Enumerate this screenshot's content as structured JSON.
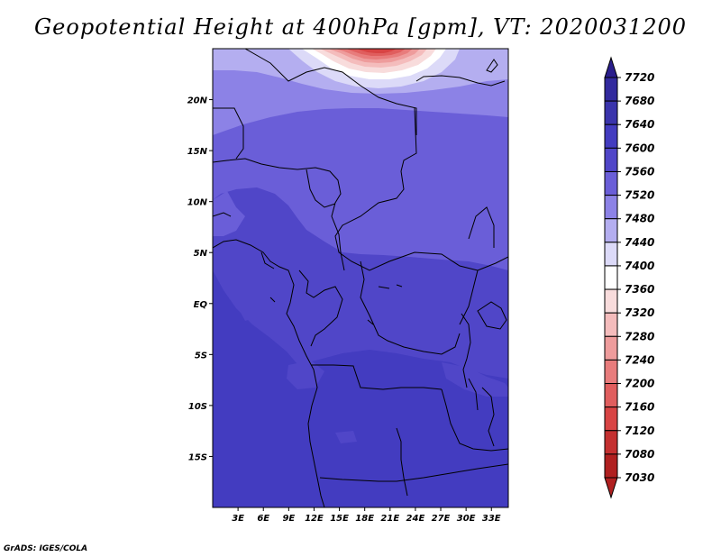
{
  "title": "Geopotential Height at 400hPa [gpm], VT: 2020031200",
  "credit": "GrADS: IGES/COLA",
  "map": {
    "lon_range": [
      0,
      35
    ],
    "lat_range": [
      -20,
      25
    ],
    "lon_ticks": [
      {
        "value": 3,
        "label": "3E"
      },
      {
        "value": 6,
        "label": "6E"
      },
      {
        "value": 9,
        "label": "9E"
      },
      {
        "value": 12,
        "label": "12E"
      },
      {
        "value": 15,
        "label": "15E"
      },
      {
        "value": 18,
        "label": "18E"
      },
      {
        "value": 21,
        "label": "21E"
      },
      {
        "value": 24,
        "label": "24E"
      },
      {
        "value": 27,
        "label": "27E"
      },
      {
        "value": 30,
        "label": "30E"
      },
      {
        "value": 33,
        "label": "33E"
      }
    ],
    "lat_ticks": [
      {
        "value": 20,
        "label": "20N"
      },
      {
        "value": 15,
        "label": "15N"
      },
      {
        "value": 10,
        "label": "10N"
      },
      {
        "value": 5,
        "label": "5N"
      },
      {
        "value": 0,
        "label": "EQ"
      },
      {
        "value": -5,
        "label": "5S"
      },
      {
        "value": -10,
        "label": "10S"
      },
      {
        "value": -15,
        "label": "15S"
      }
    ]
  },
  "colorbar": {
    "levels": [
      {
        "label": "7720",
        "color": "#2a1e8c"
      },
      {
        "label": "7680",
        "color": "#322a9e"
      },
      {
        "label": "7640",
        "color": "#3a34ac"
      },
      {
        "label": "7600",
        "color": "#433cc0"
      },
      {
        "label": "7560",
        "color": "#5046c8"
      },
      {
        "label": "7520",
        "color": "#6a5ed8"
      },
      {
        "label": "7480",
        "color": "#8c82e6"
      },
      {
        "label": "7440",
        "color": "#b4aef0"
      },
      {
        "label": "7400",
        "color": "#dcdaf8"
      },
      {
        "label": "7360",
        "color": "#ffffff"
      },
      {
        "label": "7320",
        "color": "#f8dcdc"
      },
      {
        "label": "7280",
        "color": "#f4bcbc"
      },
      {
        "label": "7240",
        "color": "#ee9c9c"
      },
      {
        "label": "7200",
        "color": "#e87c7c"
      },
      {
        "label": "7160",
        "color": "#e05e5e"
      },
      {
        "label": "7120",
        "color": "#d84444"
      },
      {
        "label": "7080",
        "color": "#c43030"
      },
      {
        "label": "7030",
        "color": "#b02020"
      }
    ],
    "top_arrow_color": "#2a1e8c",
    "bottom_arrow_color": "#b02020"
  }
}
